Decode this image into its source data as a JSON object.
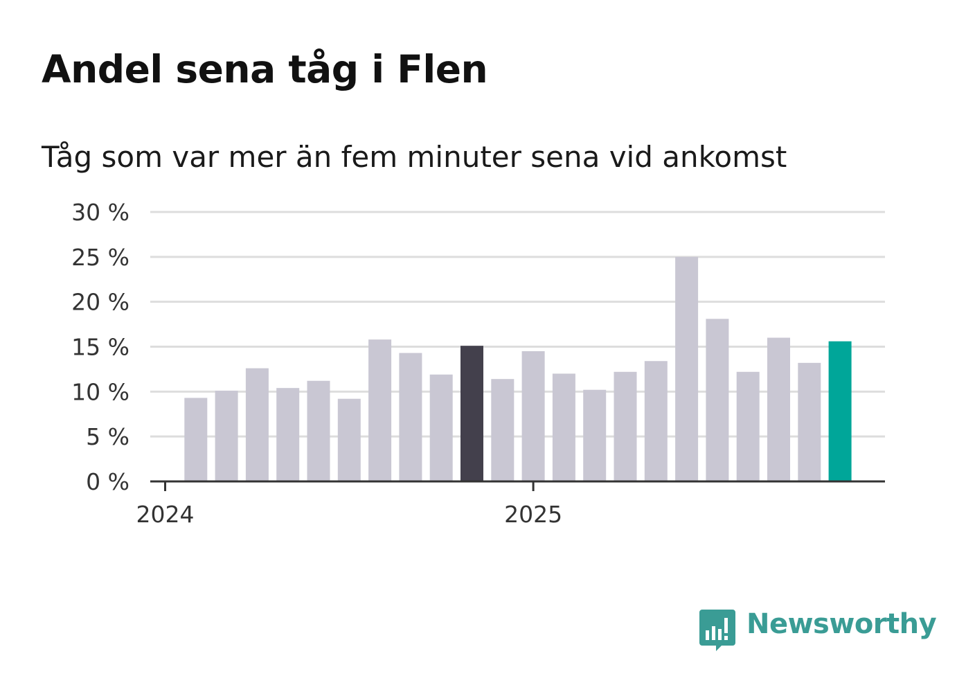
{
  "title": "Andel sena tåg i Flen",
  "subtitle": "Tåg som var mer än fem minuter sena vid ankomst",
  "brand": {
    "name": "Newsworthy",
    "color": "#3a9c95",
    "icon": "bar-chart-speech-bubble-icon"
  },
  "colors": {
    "bar": "#c9c7d3",
    "highlight": "#43404c",
    "latest": "#00a699",
    "grid": "#dddddd",
    "axis": "#333333"
  },
  "chart_data": {
    "type": "bar",
    "title": "Andel sena tåg i Flen",
    "subtitle": "Tåg som var mer än fem minuter sena vid ankomst",
    "x_tick_labels": [
      "2024",
      "2025"
    ],
    "y_tick_labels": [
      "0 %",
      "5 %",
      "10 %",
      "15 %",
      "20 %",
      "25 %",
      "30 %"
    ],
    "ylim": [
      0,
      30
    ],
    "y_unit": "%",
    "grid": true,
    "categories": [
      "2024-01",
      "2024-02",
      "2024-03",
      "2024-04",
      "2024-05",
      "2024-06",
      "2024-07",
      "2024-08",
      "2024-09",
      "2024-10",
      "2024-11",
      "2024-12",
      "2025-01",
      "2025-02",
      "2025-03",
      "2025-04",
      "2025-05",
      "2025-06",
      "2025-07",
      "2025-08",
      "2025-09",
      "2025-10",
      "2025-11",
      "2025-12"
    ],
    "values": [
      null,
      9.3,
      10.1,
      12.6,
      10.4,
      11.2,
      9.2,
      15.8,
      14.3,
      11.9,
      15.1,
      11.4,
      14.5,
      12.0,
      10.2,
      12.2,
      13.4,
      25.0,
      18.1,
      12.2,
      16.0,
      13.2,
      15.6,
      null
    ],
    "highlight_index": 10,
    "latest_index": 22
  }
}
